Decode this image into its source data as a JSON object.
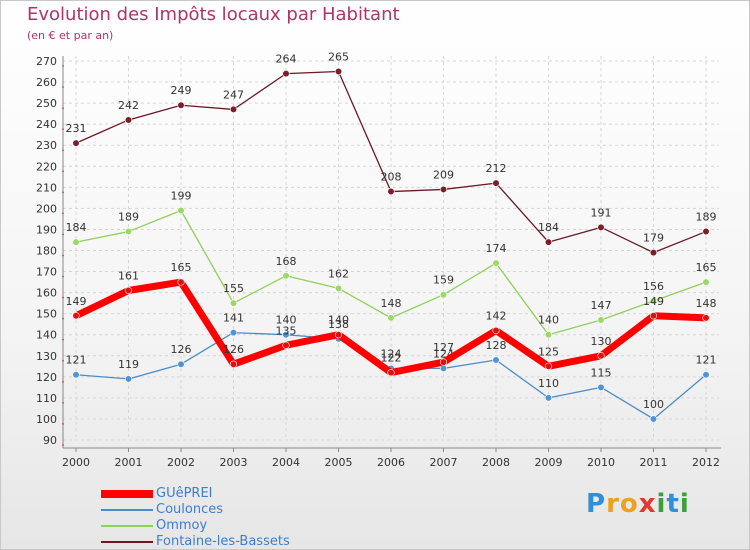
{
  "chart_data": {
    "type": "line",
    "title": "Evolution des Impôts locaux par Habitant",
    "subtitle": "(en € et par an)",
    "xlabel": "",
    "ylabel": "",
    "categories": [
      "2000",
      "2001",
      "2002",
      "2003",
      "2004",
      "2005",
      "2006",
      "2007",
      "2008",
      "2009",
      "2010",
      "2011",
      "2012"
    ],
    "ylim": [
      90,
      270
    ],
    "ytick_step": 10,
    "grid": true,
    "legend_position": "bottom-left",
    "series": [
      {
        "name": "Fontaine-les-Bassets",
        "color": "#6b1a24",
        "values": [
          231,
          242,
          249,
          247,
          264,
          265,
          208,
          209,
          212,
          184,
          191,
          179,
          189
        ]
      },
      {
        "name": "Ommoy",
        "color": "#8fd05a",
        "values": [
          184,
          189,
          199,
          155,
          168,
          162,
          148,
          159,
          174,
          140,
          147,
          156,
          165
        ]
      },
      {
        "name": "Coulonces",
        "color": "#4a8cc8",
        "values": [
          121,
          119,
          126,
          141,
          140,
          138,
          124,
          124,
          128,
          110,
          115,
          100,
          121
        ]
      },
      {
        "name": "GUêPREI",
        "color": "#ff0000",
        "values": [
          149,
          161,
          165,
          126,
          135,
          140,
          122,
          127,
          142,
          125,
          130,
          149,
          148
        ]
      }
    ],
    "legend": [
      "GUêPREI",
      "Coulonces",
      "Ommoy",
      "Fontaine-les-Bassets"
    ]
  },
  "logo": {
    "letters": [
      "P",
      "r",
      "o",
      "x",
      "i",
      "t",
      "i"
    ],
    "colors": [
      "#2f8fd8",
      "#f0a020",
      "#f0a020",
      "#e03a2e",
      "#3aa03a",
      "#2f8fd8",
      "#3aa03a"
    ]
  }
}
